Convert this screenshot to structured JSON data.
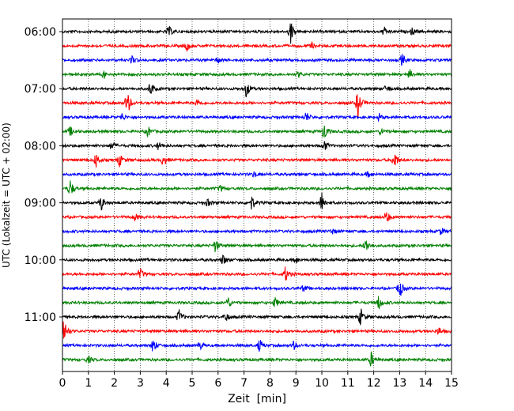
{
  "chart_data": {
    "type": "line",
    "title": "",
    "xlabel": "Zeit  [min]",
    "ylabel": "UTC (Lokalzeit = UTC + 02:00)",
    "xlim": [
      0,
      15
    ],
    "x_ticks": [
      "0",
      "1",
      "2",
      "3",
      "4",
      "5",
      "6",
      "7",
      "8",
      "9",
      "10",
      "11",
      "12",
      "13",
      "14",
      "15"
    ],
    "y_ticks": [
      "06:00",
      "07:00",
      "08:00",
      "09:00",
      "10:00",
      "11:00"
    ],
    "grid": "vertical dotted lines at each minute",
    "color_cycle": [
      "#000000",
      "#ff0000",
      "#0000ff",
      "#008000"
    ],
    "trace_interval_min": 15,
    "traces": [
      {
        "start": "06:00",
        "color": "#000000",
        "events": [
          [
            4.1,
            0.45
          ],
          [
            8.8,
            1.0
          ],
          [
            12.4,
            0.35
          ],
          [
            13.5,
            0.3
          ]
        ]
      },
      {
        "start": "06:15",
        "color": "#ff0000",
        "events": [
          [
            4.8,
            0.4
          ],
          [
            9.6,
            0.25
          ]
        ]
      },
      {
        "start": "06:30",
        "color": "#0000ff",
        "events": [
          [
            2.7,
            0.35
          ],
          [
            6.0,
            0.25
          ],
          [
            13.1,
            0.5
          ]
        ]
      },
      {
        "start": "06:45",
        "color": "#008000",
        "events": [
          [
            1.6,
            0.3
          ],
          [
            9.1,
            0.25
          ],
          [
            13.4,
            0.35
          ]
        ]
      },
      {
        "start": "07:00",
        "color": "#000000",
        "events": [
          [
            3.4,
            0.6
          ],
          [
            7.1,
            0.75
          ],
          [
            12.5,
            0.3
          ]
        ]
      },
      {
        "start": "07:15",
        "color": "#ff0000",
        "events": [
          [
            2.5,
            1.1
          ],
          [
            5.2,
            0.3
          ],
          [
            11.4,
            1.2
          ]
        ]
      },
      {
        "start": "07:30",
        "color": "#0000ff",
        "events": [
          [
            2.3,
            0.3
          ],
          [
            9.4,
            0.45
          ],
          [
            12.2,
            0.3
          ]
        ]
      },
      {
        "start": "07:45",
        "color": "#008000",
        "events": [
          [
            0.3,
            0.4
          ],
          [
            3.3,
            0.45
          ],
          [
            10.1,
            0.75
          ],
          [
            12.3,
            0.3
          ]
        ]
      },
      {
        "start": "08:00",
        "color": "#000000",
        "events": [
          [
            1.9,
            0.35
          ],
          [
            3.7,
            0.3
          ],
          [
            10.1,
            0.45
          ]
        ]
      },
      {
        "start": "08:15",
        "color": "#ff0000",
        "events": [
          [
            1.3,
            0.6
          ],
          [
            2.2,
            0.55
          ],
          [
            3.9,
            0.5
          ],
          [
            12.8,
            0.85
          ]
        ]
      },
      {
        "start": "08:30",
        "color": "#0000ff",
        "events": [
          [
            7.4,
            0.25
          ],
          [
            11.8,
            0.25
          ]
        ]
      },
      {
        "start": "08:45",
        "color": "#008000",
        "events": [
          [
            0.3,
            0.75
          ],
          [
            6.1,
            0.25
          ]
        ]
      },
      {
        "start": "09:00",
        "color": "#000000",
        "events": [
          [
            1.5,
            0.65
          ],
          [
            5.6,
            0.3
          ],
          [
            7.3,
            0.65
          ],
          [
            10.0,
            0.85
          ]
        ]
      },
      {
        "start": "09:15",
        "color": "#ff0000",
        "events": [
          [
            2.8,
            0.3
          ],
          [
            12.5,
            0.55
          ]
        ]
      },
      {
        "start": "09:30",
        "color": "#0000ff",
        "events": [
          [
            10.4,
            0.25
          ],
          [
            14.6,
            0.3
          ]
        ]
      },
      {
        "start": "09:45",
        "color": "#008000",
        "events": [
          [
            5.9,
            0.55
          ],
          [
            11.7,
            0.6
          ]
        ]
      },
      {
        "start": "10:00",
        "color": "#000000",
        "events": [
          [
            6.2,
            0.45
          ],
          [
            9.0,
            0.3
          ]
        ]
      },
      {
        "start": "10:15",
        "color": "#ff0000",
        "events": [
          [
            3.0,
            0.45
          ],
          [
            8.6,
            0.65
          ]
        ]
      },
      {
        "start": "10:30",
        "color": "#0000ff",
        "events": [
          [
            13.0,
            0.85
          ],
          [
            9.3,
            0.25
          ]
        ]
      },
      {
        "start": "10:45",
        "color": "#008000",
        "events": [
          [
            6.4,
            0.45
          ],
          [
            8.2,
            0.45
          ],
          [
            12.2,
            0.6
          ]
        ]
      },
      {
        "start": "11:00",
        "color": "#000000",
        "events": [
          [
            4.5,
            0.6
          ],
          [
            6.3,
            0.35
          ],
          [
            11.5,
            0.75
          ]
        ]
      },
      {
        "start": "11:15",
        "color": "#ff0000",
        "events": [
          [
            0.05,
            1.3
          ],
          [
            14.5,
            0.35
          ]
        ]
      },
      {
        "start": "11:30",
        "color": "#0000ff",
        "events": [
          [
            3.5,
            0.6
          ],
          [
            5.3,
            0.35
          ],
          [
            7.6,
            0.55
          ],
          [
            8.9,
            0.4
          ]
        ]
      },
      {
        "start": "11:45",
        "color": "#008000",
        "events": [
          [
            1.0,
            0.3
          ],
          [
            11.9,
            0.65
          ]
        ]
      }
    ]
  }
}
